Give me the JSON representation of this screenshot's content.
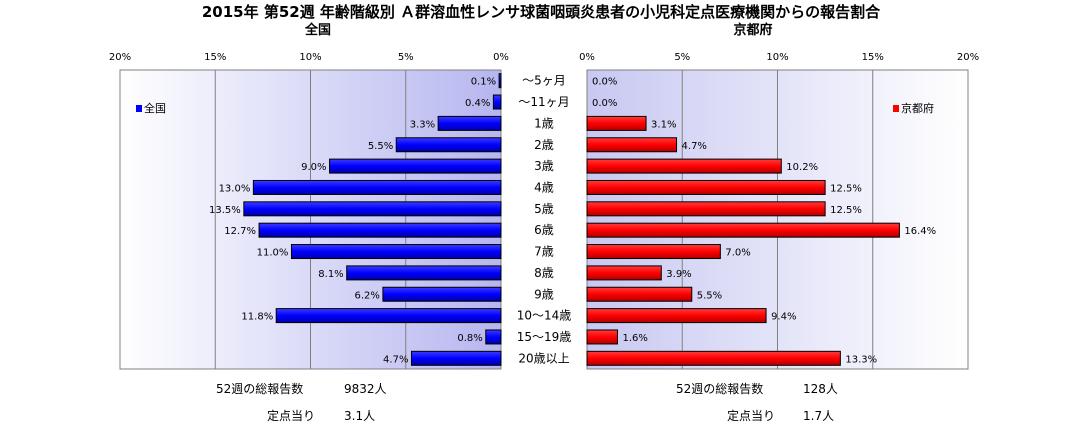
{
  "chart_data": {
    "type": "bar",
    "title": "2015年 第52週 年齢階級別 Ａ群溶血性レンサ球菌咽頭炎患者の小児科定点医療機関からの報告割合",
    "categories": [
      "～5ヶ月",
      "～11ヶ月",
      "1歳",
      "2歳",
      "3歳",
      "4歳",
      "5歳",
      "6歳",
      "7歳",
      "8歳",
      "9歳",
      "10～14歳",
      "15～19歳",
      "20歳以上"
    ],
    "xlim": [
      0,
      20
    ],
    "ticks": [
      "0%",
      "5%",
      "10%",
      "15%",
      "20%"
    ],
    "grid": true,
    "panels": [
      {
        "subtitle": "全国",
        "legend": "全国",
        "legend_position": "top-left",
        "color": "#0000ff",
        "values": [
          0.1,
          0.4,
          3.3,
          5.5,
          9.0,
          13.0,
          13.5,
          12.7,
          11.0,
          8.1,
          6.2,
          11.8,
          0.8,
          4.7
        ],
        "labels": [
          "0.1%",
          "0.4%",
          "3.3%",
          "5.5%",
          "9.0%",
          "13.0%",
          "13.5%",
          "12.7%",
          "11.0%",
          "8.1%",
          "6.2%",
          "11.8%",
          "0.8%",
          "4.7%"
        ],
        "footer": {
          "total_label": "52週の総報告数",
          "total_value": "9832人",
          "per_label": "定点当り",
          "per_value": "3.1人"
        }
      },
      {
        "subtitle": "京都府",
        "legend": "京都府",
        "legend_position": "top-right",
        "color": "#ff0000",
        "values": [
          0.0,
          0.0,
          3.1,
          4.7,
          10.2,
          12.5,
          12.5,
          16.4,
          7.0,
          3.9,
          5.5,
          9.4,
          1.6,
          13.3
        ],
        "labels": [
          "0.0%",
          "0.0%",
          "3.1%",
          "4.7%",
          "10.2%",
          "12.5%",
          "12.5%",
          "16.4%",
          "7.0%",
          "3.9%",
          "5.5%",
          "9.4%",
          "1.6%",
          "13.3%"
        ],
        "footer": {
          "total_label": "52週の総報告数",
          "total_value": "128人",
          "per_label": "定点当り",
          "per_value": "1.7人"
        }
      }
    ]
  }
}
